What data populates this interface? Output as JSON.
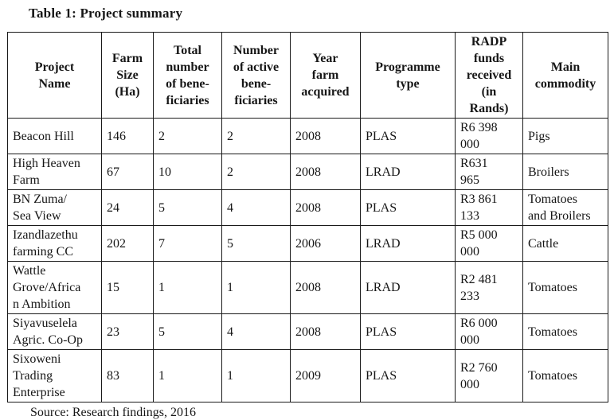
{
  "document": {
    "title": "Table 1: Project summary",
    "source_note": "Source: Research findings, 2016"
  },
  "table": {
    "columns": [
      "Project\nName",
      "Farm\nSize\n(Ha)",
      "Total\nnumber\nof bene-\nficiaries",
      "Number\nof active\nbene-\nficiaries",
      "Year\nfarm\nacquired",
      "Programme\ntype",
      "RADP\nfunds\nreceived\n(in\nRands)",
      "Main\ncommodity"
    ],
    "rows": [
      {
        "cells": [
          "Beacon Hill",
          "146",
          "2",
          "2",
          "2008",
          "PLAS",
          "R6 398\n000",
          "Pigs"
        ]
      },
      {
        "cells": [
          "High Heaven\nFarm",
          "67",
          "10",
          "2",
          "2008",
          "LRAD",
          "R631\n965",
          "Broilers"
        ]
      },
      {
        "cells": [
          "BN Zuma/\nSea View",
          "24",
          "5",
          "4",
          "2008",
          "PLAS",
          "R3 861\n133",
          "Tomatoes\nand Broilers"
        ]
      },
      {
        "cells": [
          "Izandlazethu\nfarming CC",
          "202",
          "7",
          "5",
          "2006",
          "LRAD",
          "R5 000\n000",
          "Cattle"
        ]
      },
      {
        "cells": [
          "Wattle\nGrove/Africa\nn Ambition",
          "15",
          "1",
          "1",
          "2008",
          "LRAD",
          "R2 481\n233",
          "Tomatoes"
        ]
      },
      {
        "cells": [
          "Siyavuselela\nAgric. Co-Op",
          "23",
          "5",
          "4",
          "2008",
          "PLAS",
          "R6 000\n000",
          "Tomatoes"
        ]
      },
      {
        "cells": [
          "Sixoweni\nTrading\nEnterprise",
          "83",
          "1",
          "1",
          "2009",
          "PLAS",
          "R2 760\n000",
          "Tomatoes"
        ]
      }
    ]
  }
}
